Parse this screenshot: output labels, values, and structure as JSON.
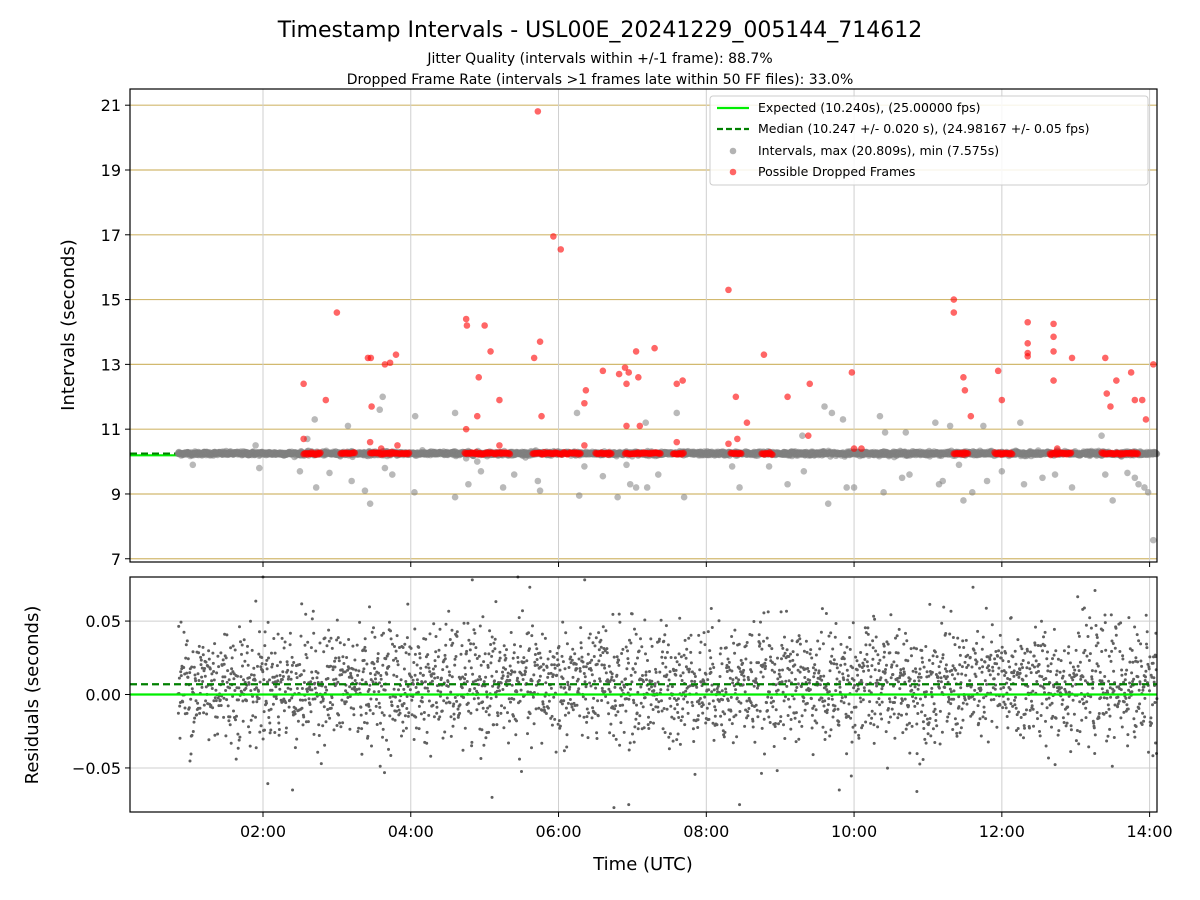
{
  "chart_data": [
    {
      "type": "scatter",
      "title": "Timestamp Intervals - USL00E_20241229_005144_714612",
      "subtitle": [
        "Jitter Quality (intervals within +/-1 frame): 88.7%",
        "Dropped Frame Rate (intervals >1 frames late within 50 FF files): 33.0%"
      ],
      "xlabel": "",
      "ylabel": "Intervals (seconds)",
      "xlim": [
        0.2,
        14.1
      ],
      "ylim": [
        6.9,
        21.5
      ],
      "yticks": [
        7,
        9,
        11,
        13,
        15,
        17,
        19,
        21
      ],
      "yticklabels": [
        "7",
        "9",
        "11",
        "13",
        "15",
        "17",
        "19",
        "21"
      ],
      "grid": true,
      "hlines": [
        {
          "name": "Expected (10.240s), (25.00000 fps)",
          "y": 10.24,
          "color": "#00ee00",
          "style": "solid"
        },
        {
          "name": "Median (10.247 +/- 0.020 s), (24.98167 +/- 0.05 fps)",
          "y": 10.247,
          "color": "#008000",
          "style": "dashed"
        }
      ],
      "legend": {
        "position": "top-right",
        "entries": [
          "Expected (10.240s), (25.00000 fps)",
          "Median (10.247 +/- 0.020 s), (24.98167 +/- 0.05 fps)",
          "Intervals, max (20.809s), min (7.575s)",
          "Possible Dropped Frames"
        ]
      },
      "series": [
        {
          "name": "Intervals, max (20.809s), min (7.575s)",
          "color": "#808080",
          "points": [
            [
              1.05,
              9.9
            ],
            [
              1.9,
              10.5
            ],
            [
              1.95,
              9.8
            ],
            [
              2.5,
              9.7
            ],
            [
              2.6,
              10.7
            ],
            [
              2.7,
              11.3
            ],
            [
              2.72,
              9.2
            ],
            [
              2.9,
              9.65
            ],
            [
              3.15,
              11.1
            ],
            [
              3.2,
              9.4
            ],
            [
              3.38,
              9.1
            ],
            [
              3.45,
              8.7
            ],
            [
              3.58,
              11.6
            ],
            [
              3.62,
              12.0
            ],
            [
              3.65,
              9.8
            ],
            [
              3.75,
              9.6
            ],
            [
              4.05,
              9.05
            ],
            [
              4.06,
              11.4
            ],
            [
              4.6,
              11.5
            ],
            [
              4.6,
              8.9
            ],
            [
              4.75,
              10.1
            ],
            [
              4.78,
              9.3
            ],
            [
              4.9,
              10.0
            ],
            [
              4.95,
              9.7
            ],
            [
              5.25,
              9.2
            ],
            [
              5.4,
              9.6
            ],
            [
              5.72,
              9.4
            ],
            [
              5.75,
              9.1
            ],
            [
              6.25,
              11.5
            ],
            [
              6.28,
              8.95
            ],
            [
              6.35,
              9.85
            ],
            [
              6.6,
              9.55
            ],
            [
              6.8,
              8.9
            ],
            [
              6.92,
              9.9
            ],
            [
              6.97,
              9.3
            ],
            [
              7.05,
              9.2
            ],
            [
              7.18,
              11.2
            ],
            [
              7.2,
              9.2
            ],
            [
              7.35,
              9.6
            ],
            [
              7.6,
              11.5
            ],
            [
              7.7,
              8.9
            ],
            [
              8.35,
              9.85
            ],
            [
              8.45,
              9.2
            ],
            [
              8.85,
              9.85
            ],
            [
              9.1,
              9.3
            ],
            [
              9.3,
              10.8
            ],
            [
              9.32,
              9.7
            ],
            [
              9.6,
              11.7
            ],
            [
              9.65,
              8.7
            ],
            [
              9.7,
              11.5
            ],
            [
              9.85,
              11.3
            ],
            [
              9.9,
              9.2
            ],
            [
              10.0,
              9.2
            ],
            [
              10.35,
              11.4
            ],
            [
              10.4,
              9.05
            ],
            [
              10.42,
              10.9
            ],
            [
              10.65,
              9.5
            ],
            [
              10.7,
              10.9
            ],
            [
              10.75,
              9.6
            ],
            [
              11.1,
              11.2
            ],
            [
              11.15,
              9.3
            ],
            [
              11.2,
              9.4
            ],
            [
              11.3,
              11.1
            ],
            [
              11.42,
              9.9
            ],
            [
              11.48,
              8.8
            ],
            [
              11.6,
              9.05
            ],
            [
              11.75,
              11.1
            ],
            [
              11.8,
              9.4
            ],
            [
              12.0,
              9.7
            ],
            [
              12.25,
              11.2
            ],
            [
              12.3,
              9.3
            ],
            [
              12.55,
              9.5
            ],
            [
              12.72,
              9.6
            ],
            [
              12.95,
              9.2
            ],
            [
              13.35,
              10.8
            ],
            [
              13.4,
              9.6
            ],
            [
              13.5,
              8.8
            ],
            [
              13.7,
              9.65
            ],
            [
              13.8,
              9.5
            ],
            [
              13.85,
              9.3
            ],
            [
              13.93,
              9.2
            ],
            [
              13.98,
              9.05
            ],
            [
              14.05,
              7.575
            ]
          ]
        },
        {
          "name": "Possible Dropped Frames",
          "color": "#ff0000",
          "points": [
            [
              2.55,
              12.4
            ],
            [
              2.55,
              10.7
            ],
            [
              2.85,
              11.9
            ],
            [
              3.0,
              14.6
            ],
            [
              3.42,
              13.2
            ],
            [
              3.46,
              13.2
            ],
            [
              3.47,
              11.7
            ],
            [
              3.45,
              10.6
            ],
            [
              3.6,
              10.4
            ],
            [
              3.65,
              13.0
            ],
            [
              3.72,
              13.05
            ],
            [
              3.8,
              13.3
            ],
            [
              3.82,
              10.5
            ],
            [
              4.75,
              14.4
            ],
            [
              4.76,
              14.2
            ],
            [
              4.75,
              11.0
            ],
            [
              4.9,
              11.4
            ],
            [
              4.92,
              12.6
            ],
            [
              5.0,
              14.2
            ],
            [
              5.08,
              13.4
            ],
            [
              5.2,
              11.9
            ],
            [
              5.2,
              10.5
            ],
            [
              5.67,
              13.2
            ],
            [
              5.72,
              20.809
            ],
            [
              5.75,
              13.7
            ],
            [
              5.77,
              11.4
            ],
            [
              5.93,
              16.95
            ],
            [
              6.03,
              16.55
            ],
            [
              6.35,
              11.8
            ],
            [
              6.37,
              12.2
            ],
            [
              6.35,
              10.5
            ],
            [
              6.6,
              12.8
            ],
            [
              6.82,
              12.7
            ],
            [
              6.9,
              12.9
            ],
            [
              6.92,
              12.4
            ],
            [
              6.95,
              12.75
            ],
            [
              6.92,
              11.1
            ],
            [
              7.05,
              13.4
            ],
            [
              7.08,
              12.6
            ],
            [
              7.1,
              11.1
            ],
            [
              7.3,
              13.5
            ],
            [
              7.6,
              12.4
            ],
            [
              7.68,
              12.5
            ],
            [
              7.6,
              10.6
            ],
            [
              8.3,
              15.3
            ],
            [
              8.3,
              10.55
            ],
            [
              8.4,
              12.0
            ],
            [
              8.42,
              10.7
            ],
            [
              8.55,
              11.2
            ],
            [
              8.78,
              13.3
            ],
            [
              9.1,
              12.0
            ],
            [
              9.4,
              12.4
            ],
            [
              9.38,
              10.8
            ],
            [
              9.97,
              12.75
            ],
            [
              10.0,
              10.4
            ],
            [
              10.1,
              10.4
            ],
            [
              11.35,
              15.0
            ],
            [
              11.35,
              14.6
            ],
            [
              11.48,
              12.6
            ],
            [
              11.5,
              12.2
            ],
            [
              11.58,
              11.4
            ],
            [
              11.95,
              12.8
            ],
            [
              12.0,
              11.9
            ],
            [
              12.35,
              14.3
            ],
            [
              12.35,
              13.65
            ],
            [
              12.35,
              13.35
            ],
            [
              12.35,
              13.25
            ],
            [
              12.7,
              14.25
            ],
            [
              12.7,
              13.85
            ],
            [
              12.7,
              13.4
            ],
            [
              12.7,
              12.5
            ],
            [
              12.75,
              10.4
            ],
            [
              12.95,
              13.2
            ],
            [
              13.4,
              13.2
            ],
            [
              13.42,
              12.1
            ],
            [
              13.47,
              11.7
            ],
            [
              13.55,
              12.5
            ],
            [
              13.75,
              12.75
            ],
            [
              13.8,
              11.9
            ],
            [
              13.9,
              11.9
            ],
            [
              13.95,
              11.3
            ],
            [
              14.05,
              13.0
            ]
          ],
          "dense_runs_y": 10.25,
          "dense_runs_x": [
            [
              2.55,
              2.78
            ],
            [
              3.05,
              3.25
            ],
            [
              3.45,
              3.98
            ],
            [
              4.73,
              5.35
            ],
            [
              5.65,
              6.3
            ],
            [
              6.5,
              6.72
            ],
            [
              6.9,
              7.38
            ],
            [
              7.55,
              7.7
            ],
            [
              8.33,
              8.48
            ],
            [
              8.75,
              8.9
            ],
            [
              11.35,
              11.55
            ],
            [
              11.9,
              12.15
            ],
            [
              12.65,
              12.95
            ],
            [
              13.35,
              13.85
            ]
          ]
        }
      ]
    },
    {
      "type": "scatter",
      "title": "",
      "xlabel": "Time (UTC)",
      "ylabel": "Residuals (seconds)",
      "xlim": [
        0.2,
        14.1
      ],
      "ylim": [
        -0.08,
        0.08
      ],
      "xticks": [
        2,
        4,
        6,
        8,
        10,
        12,
        14
      ],
      "xticklabels": [
        "02:00",
        "04:00",
        "06:00",
        "08:00",
        "10:00",
        "12:00",
        "14:00"
      ],
      "yticks": [
        0.05,
        0.0,
        -0.05
      ],
      "yticklabels": [
        "0.05",
        "0.00",
        "−0.05"
      ],
      "grid": true,
      "hlines": [
        {
          "y": 0.0,
          "color": "#00ee00",
          "style": "solid"
        },
        {
          "y": 0.007,
          "color": "#008000",
          "style": "dashed"
        }
      ],
      "series": [
        {
          "color": "#606060",
          "x_range": [
            0.85,
            14.1
          ],
          "distribution": "approximately normal, mean 0.007, sd 0.02, about 3000 points",
          "outliers": [
            [
              2.0,
              0.08
            ],
            [
              5.45,
              0.08
            ],
            [
              2.4,
              -0.065
            ],
            [
              5.1,
              -0.07
            ],
            [
              6.75,
              -0.077
            ],
            [
              6.95,
              -0.075
            ],
            [
              8.45,
              -0.075
            ],
            [
              9.8,
              -0.065
            ],
            [
              10.85,
              -0.066
            ],
            [
              14.08,
              -0.033
            ]
          ]
        }
      ]
    }
  ]
}
